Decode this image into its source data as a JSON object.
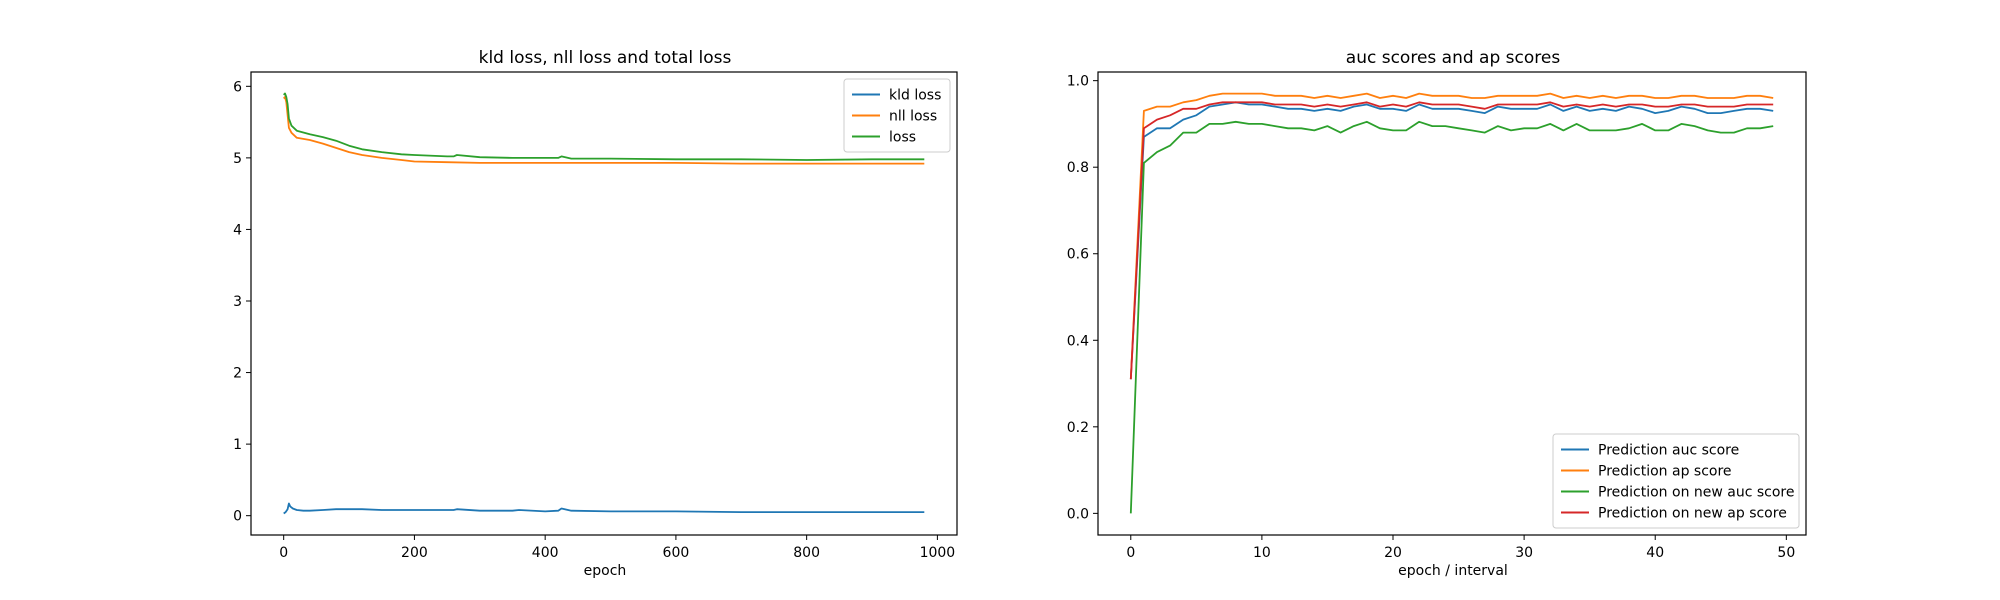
{
  "chart_data": [
    {
      "type": "line",
      "title": "kld loss, nll loss and total loss",
      "xlabel": "epoch",
      "ylabel": "",
      "xlim": [
        -50,
        1030
      ],
      "ylim": [
        -0.27,
        6.2
      ],
      "xticks": [
        0,
        200,
        400,
        600,
        800,
        1000
      ],
      "yticks": [
        0,
        1,
        2,
        3,
        4,
        5,
        6
      ],
      "xtick_labels": [
        "0",
        "200",
        "400",
        "600",
        "800",
        "1000"
      ],
      "ytick_labels": [
        "0",
        "1",
        "2",
        "3",
        "4",
        "5",
        "6"
      ],
      "legend_position": "top-right",
      "series": [
        {
          "name": "kld loss",
          "color": "#1f77b4",
          "x": [
            0,
            3,
            6,
            8,
            10,
            14,
            20,
            30,
            40,
            60,
            80,
            100,
            120,
            150,
            180,
            200,
            230,
            260,
            265,
            300,
            350,
            360,
            400,
            420,
            425,
            440,
            500,
            600,
            700,
            800,
            900,
            980
          ],
          "y": [
            0.03,
            0.05,
            0.09,
            0.17,
            0.13,
            0.1,
            0.08,
            0.07,
            0.07,
            0.08,
            0.09,
            0.09,
            0.09,
            0.08,
            0.08,
            0.08,
            0.08,
            0.08,
            0.09,
            0.07,
            0.07,
            0.08,
            0.06,
            0.07,
            0.1,
            0.07,
            0.06,
            0.06,
            0.05,
            0.05,
            0.05,
            0.05
          ]
        },
        {
          "name": "nll loss",
          "color": "#ff7f0e",
          "x": [
            0,
            2,
            4,
            6,
            8,
            12,
            20,
            40,
            60,
            80,
            100,
            120,
            150,
            180,
            200,
            250,
            300,
            400,
            500,
            600,
            700,
            800,
            900,
            980
          ],
          "y": [
            5.83,
            5.85,
            5.78,
            5.6,
            5.42,
            5.35,
            5.28,
            5.25,
            5.2,
            5.14,
            5.08,
            5.04,
            5.0,
            4.97,
            4.95,
            4.94,
            4.93,
            4.93,
            4.93,
            4.93,
            4.92,
            4.92,
            4.92,
            4.92
          ]
        },
        {
          "name": "loss",
          "color": "#2ca02c",
          "x": [
            0,
            2,
            4,
            6,
            8,
            12,
            20,
            40,
            60,
            80,
            100,
            120,
            150,
            180,
            200,
            250,
            260,
            265,
            300,
            350,
            400,
            420,
            425,
            440,
            500,
            600,
            700,
            800,
            900,
            980
          ],
          "y": [
            5.88,
            5.9,
            5.85,
            5.75,
            5.55,
            5.45,
            5.38,
            5.33,
            5.29,
            5.24,
            5.17,
            5.12,
            5.08,
            5.05,
            5.04,
            5.02,
            5.02,
            5.04,
            5.01,
            5.0,
            5.0,
            5.0,
            5.02,
            4.99,
            4.99,
            4.98,
            4.98,
            4.97,
            4.98,
            4.98
          ]
        }
      ]
    },
    {
      "type": "line",
      "title": "auc scores and ap scores",
      "xlabel": "epoch / interval",
      "ylabel": "",
      "xlim": [
        -2.5,
        51.5
      ],
      "ylim": [
        -0.05,
        1.02
      ],
      "xticks": [
        0,
        10,
        20,
        30,
        40,
        50
      ],
      "yticks": [
        0.0,
        0.2,
        0.4,
        0.6,
        0.8,
        1.0
      ],
      "xtick_labels": [
        "0",
        "10",
        "20",
        "30",
        "40",
        "50"
      ],
      "ytick_labels": [
        "0.0",
        "0.2",
        "0.4",
        "0.6",
        "0.8",
        "1.0"
      ],
      "legend_position": "bottom-right",
      "x": [
        0,
        1,
        2,
        3,
        4,
        5,
        6,
        7,
        8,
        9,
        10,
        11,
        12,
        13,
        14,
        15,
        16,
        17,
        18,
        19,
        20,
        21,
        22,
        23,
        24,
        25,
        26,
        27,
        28,
        29,
        30,
        31,
        32,
        33,
        34,
        35,
        36,
        37,
        38,
        39,
        40,
        41,
        42,
        43,
        44,
        45,
        46,
        47,
        48,
        49
      ],
      "series": [
        {
          "name": "Prediction auc score",
          "color": "#1f77b4",
          "values": [
            0.31,
            0.87,
            0.89,
            0.89,
            0.91,
            0.92,
            0.94,
            0.945,
            0.95,
            0.945,
            0.945,
            0.94,
            0.935,
            0.935,
            0.93,
            0.935,
            0.93,
            0.94,
            0.945,
            0.935,
            0.935,
            0.93,
            0.945,
            0.935,
            0.935,
            0.935,
            0.93,
            0.925,
            0.94,
            0.935,
            0.935,
            0.935,
            0.945,
            0.93,
            0.94,
            0.93,
            0.935,
            0.93,
            0.94,
            0.935,
            0.925,
            0.93,
            0.94,
            0.935,
            0.925,
            0.925,
            0.93,
            0.935,
            0.935,
            0.93
          ]
        },
        {
          "name": "Prediction ap score",
          "color": "#ff7f0e",
          "values": [
            0.31,
            0.93,
            0.94,
            0.94,
            0.95,
            0.955,
            0.965,
            0.97,
            0.97,
            0.97,
            0.97,
            0.965,
            0.965,
            0.965,
            0.96,
            0.965,
            0.96,
            0.965,
            0.97,
            0.96,
            0.965,
            0.96,
            0.97,
            0.965,
            0.965,
            0.965,
            0.96,
            0.96,
            0.965,
            0.965,
            0.965,
            0.965,
            0.97,
            0.96,
            0.965,
            0.96,
            0.965,
            0.96,
            0.965,
            0.965,
            0.96,
            0.96,
            0.965,
            0.965,
            0.96,
            0.96,
            0.96,
            0.965,
            0.965,
            0.96
          ]
        },
        {
          "name": "Prediction on new auc score",
          "color": "#2ca02c",
          "values": [
            0.0,
            0.81,
            0.835,
            0.85,
            0.88,
            0.88,
            0.9,
            0.9,
            0.905,
            0.9,
            0.9,
            0.895,
            0.89,
            0.89,
            0.885,
            0.895,
            0.88,
            0.895,
            0.905,
            0.89,
            0.885,
            0.885,
            0.905,
            0.895,
            0.895,
            0.89,
            0.885,
            0.88,
            0.895,
            0.885,
            0.89,
            0.89,
            0.9,
            0.885,
            0.9,
            0.885,
            0.885,
            0.885,
            0.89,
            0.9,
            0.885,
            0.885,
            0.9,
            0.895,
            0.885,
            0.88,
            0.88,
            0.89,
            0.89,
            0.895
          ]
        },
        {
          "name": "Prediction on new ap score",
          "color": "#d62728",
          "values": [
            0.31,
            0.89,
            0.91,
            0.92,
            0.935,
            0.935,
            0.945,
            0.95,
            0.95,
            0.95,
            0.95,
            0.945,
            0.945,
            0.945,
            0.94,
            0.945,
            0.94,
            0.945,
            0.95,
            0.94,
            0.945,
            0.94,
            0.95,
            0.945,
            0.945,
            0.945,
            0.94,
            0.935,
            0.945,
            0.945,
            0.945,
            0.945,
            0.95,
            0.94,
            0.945,
            0.94,
            0.945,
            0.94,
            0.945,
            0.945,
            0.94,
            0.94,
            0.945,
            0.945,
            0.94,
            0.94,
            0.94,
            0.945,
            0.945,
            0.945
          ]
        }
      ]
    }
  ]
}
